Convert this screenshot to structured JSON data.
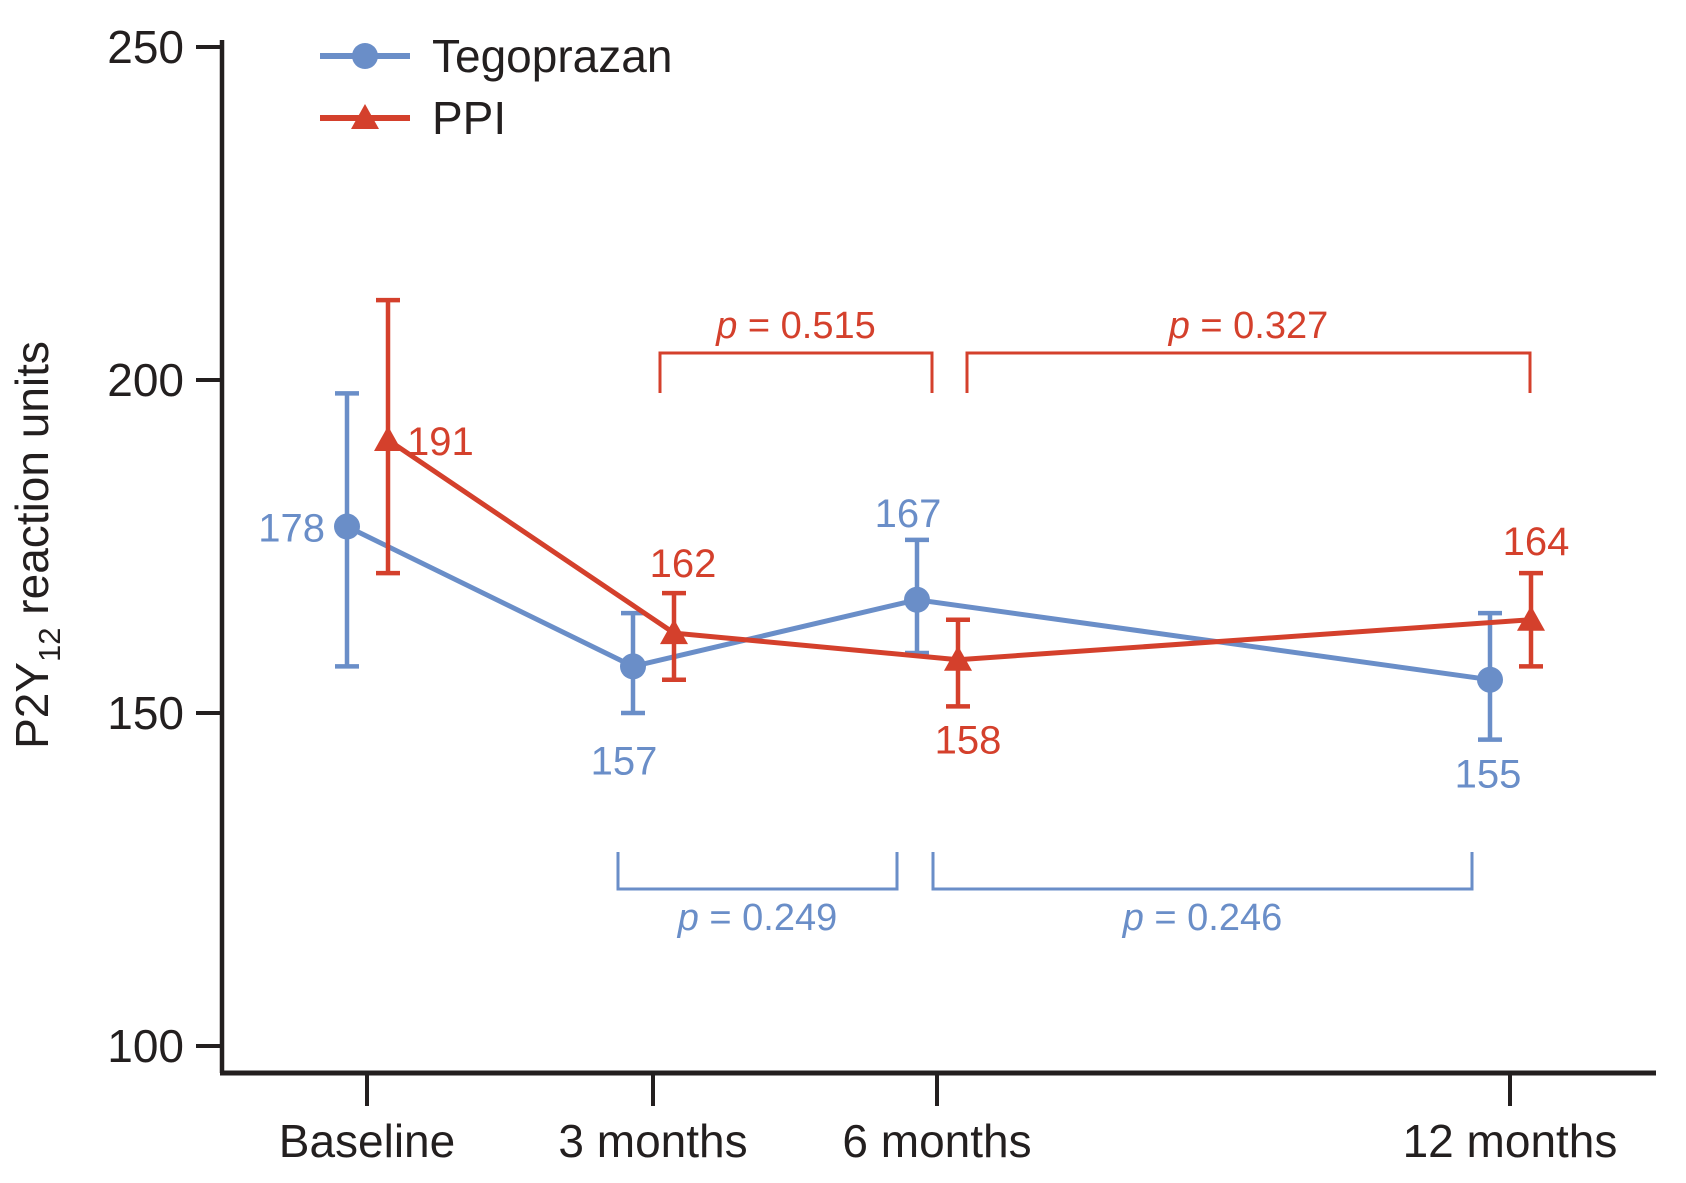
{
  "colors": {
    "background": "#ffffff",
    "axis_ink": "#231f1f",
    "tegoprazan_blue": "#6a8ec8",
    "ppi_red": "#d4402c"
  },
  "legend": {
    "items": [
      {
        "label": "Tegoprazan",
        "marker": "circle-on-line",
        "color": "#6a8ec8"
      },
      {
        "label": "PPI",
        "marker": "triangle-on-line",
        "color": "#d4402c"
      }
    ]
  },
  "chart_data": {
    "type": "line",
    "title": "",
    "xlabel": "",
    "ylabel": "P2Y12 reaction units",
    "ylabel_parts": {
      "main": "P2Y",
      "sub": "12",
      "rest": " reaction units"
    },
    "categories": [
      "Baseline",
      "3 months",
      "6 months",
      "12 months"
    ],
    "x_months": [
      0,
      3,
      6,
      12
    ],
    "ylim": [
      100,
      250
    ],
    "yticks": [
      250,
      200,
      150,
      100
    ],
    "grid": false,
    "legend_position": "top-left",
    "series": [
      {
        "name": "Tegoprazan",
        "color": "#6a8ec8",
        "marker": "circle",
        "values": [
          178,
          157,
          167,
          155
        ],
        "err_high": [
          198,
          165,
          176,
          165
        ],
        "err_low": [
          157,
          150,
          159,
          146
        ]
      },
      {
        "name": "PPI",
        "color": "#d4402c",
        "marker": "triangle",
        "values": [
          191,
          162,
          158,
          164
        ],
        "err_high": [
          212,
          168,
          164,
          171
        ],
        "err_low": [
          171,
          155,
          151,
          157
        ]
      }
    ],
    "comparisons": [
      {
        "series": "PPI",
        "between": [
          "3 months",
          "6 months"
        ],
        "position": "above",
        "label": "p = 0.515",
        "p_italic": "p",
        "rest": " = 0.515"
      },
      {
        "series": "PPI",
        "between": [
          "6 months",
          "12 months"
        ],
        "position": "above",
        "label": "p = 0.327",
        "p_italic": "p",
        "rest": " = 0.327"
      },
      {
        "series": "Tegoprazan",
        "between": [
          "3 months",
          "6 months"
        ],
        "position": "below",
        "label": "p = 0.249",
        "p_italic": "p",
        "rest": " = 0.249"
      },
      {
        "series": "Tegoprazan",
        "between": [
          "6 months",
          "12 months"
        ],
        "position": "below",
        "label": "p = 0.246",
        "p_italic": "p",
        "rest": " = 0.246"
      }
    ]
  }
}
